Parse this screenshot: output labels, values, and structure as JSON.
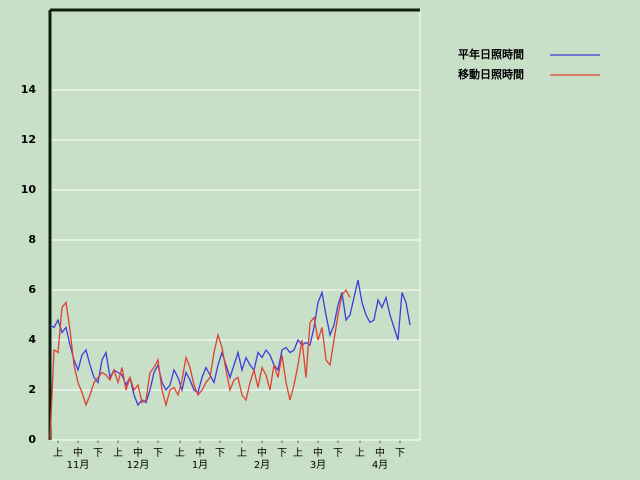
{
  "chart_data": {
    "type": "line",
    "x": [
      0,
      2,
      4,
      6,
      8,
      10,
      12,
      14,
      16,
      18,
      20,
      22,
      24,
      26,
      28,
      30,
      32,
      34,
      36,
      38,
      40,
      42,
      44,
      46,
      48,
      50,
      52,
      54,
      56,
      58,
      60,
      62,
      64,
      66,
      68,
      70,
      72,
      74,
      76,
      78,
      80,
      82,
      84,
      86,
      88,
      90,
      92,
      94,
      96,
      98,
      100,
      102,
      104,
      106,
      108,
      110,
      112,
      114,
      116,
      118,
      120,
      122,
      124,
      126,
      128,
      130,
      132,
      134,
      136,
      138,
      140,
      142,
      144,
      146,
      148,
      150,
      152,
      154,
      156,
      158,
      160,
      162,
      164,
      166,
      168,
      170,
      172,
      174,
      176,
      178,
      180
    ],
    "series": [
      {
        "name": "平年日照時間",
        "color": "#3c3cdc",
        "values": [
          4.6,
          4.5,
          4.8,
          4.3,
          4.5,
          3.8,
          3.2,
          2.8,
          3.4,
          3.6,
          3.0,
          2.5,
          2.3,
          3.2,
          3.5,
          2.5,
          2.8,
          2.7,
          2.6,
          2.2,
          2.5,
          1.8,
          1.4,
          1.6,
          1.5,
          2.0,
          2.7,
          3.0,
          2.3,
          2.0,
          2.2,
          2.8,
          2.5,
          2.0,
          2.7,
          2.4,
          2.0,
          1.9,
          2.5,
          2.9,
          2.6,
          2.3,
          3.0,
          3.5,
          3.0,
          2.5,
          3.0,
          3.5,
          2.8,
          3.3,
          3.0,
          2.8,
          3.5,
          3.3,
          3.6,
          3.4,
          3.0,
          2.8,
          3.6,
          3.7,
          3.5,
          3.6,
          4.0,
          3.8,
          3.9,
          3.8,
          4.5,
          5.5,
          5.9,
          5.0,
          4.2,
          4.6,
          5.4,
          5.9,
          4.8,
          5.0,
          5.7,
          6.4,
          5.5,
          5.0,
          4.7,
          4.8,
          5.6,
          5.3,
          5.7,
          5.0,
          4.5,
          4.0,
          5.9,
          5.5,
          4.6
        ]
      },
      {
        "name": "移動日照時間",
        "color": "#e04030",
        "values": [
          0,
          3.6,
          3.5,
          5.3,
          5.5,
          4.4,
          3.0,
          2.3,
          1.9,
          1.4,
          1.8,
          2.3,
          2.5,
          2.7,
          2.6,
          2.4,
          2.8,
          2.3,
          2.9,
          2.0,
          2.5,
          2.0,
          2.2,
          1.5,
          1.6,
          2.7,
          2.9,
          3.2,
          2.0,
          1.4,
          2.0,
          2.1,
          1.8,
          2.4,
          3.3,
          2.9,
          2.2,
          1.8,
          2.0,
          2.3,
          2.5,
          3.5,
          4.2,
          3.7,
          2.8,
          2.0,
          2.4,
          2.5,
          1.8,
          1.6,
          2.3,
          2.8,
          2.1,
          2.9,
          2.6,
          2.0,
          3.0,
          2.5,
          3.4,
          2.3,
          1.6,
          2.2,
          3.0,
          4.0,
          2.5,
          4.7,
          4.9,
          4.0,
          4.5,
          3.2,
          3.0,
          4.0,
          5.0,
          5.8,
          6.0,
          5.7,
          null,
          null,
          null,
          null,
          null,
          null,
          null,
          null,
          null,
          null,
          null,
          null,
          null,
          null,
          null
        ]
      }
    ],
    "xlim": [
      0,
      185
    ],
    "xticks": [
      {
        "value": 4,
        "label": "上"
      },
      {
        "value": 14,
        "label": "中"
      },
      {
        "value": 24,
        "label": "下"
      },
      {
        "value": 34,
        "label": "上"
      },
      {
        "value": 44,
        "label": "中"
      },
      {
        "value": 54,
        "label": "下"
      },
      {
        "value": 65,
        "label": "上"
      },
      {
        "value": 75,
        "label": "中"
      },
      {
        "value": 85,
        "label": "下"
      },
      {
        "value": 96,
        "label": "上"
      },
      {
        "value": 106,
        "label": "中"
      },
      {
        "value": 116,
        "label": "下"
      },
      {
        "value": 124,
        "label": "上"
      },
      {
        "value": 134,
        "label": "中"
      },
      {
        "value": 144,
        "label": "下"
      },
      {
        "value": 155,
        "label": "上"
      },
      {
        "value": 165,
        "label": "中"
      },
      {
        "value": 175,
        "label": "下"
      }
    ],
    "month_ticks": [
      {
        "value": 14,
        "label": "11月"
      },
      {
        "value": 44,
        "label": "12月"
      },
      {
        "value": 75,
        "label": "1月"
      },
      {
        "value": 106,
        "label": "2月"
      },
      {
        "value": 134,
        "label": "3月"
      },
      {
        "value": 165,
        "label": "4月"
      }
    ],
    "ylim": [
      0,
      17.2
    ],
    "yticks": [
      0,
      2,
      4,
      6,
      8,
      10,
      12,
      14
    ],
    "grid": true
  }
}
